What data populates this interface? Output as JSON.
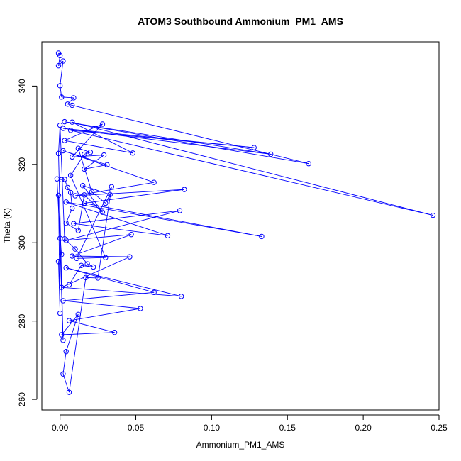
{
  "chart_data": {
    "type": "line",
    "title": "ATOM3 Southbound Ammonium_PM1_AMS",
    "xlabel": "Ammonium_PM1_AMS",
    "ylabel": "Theta (K)",
    "xlim": [
      -0.012,
      0.25
    ],
    "ylim": [
      257.3,
      351.3
    ],
    "x_ticks": [
      0.0,
      0.05,
      0.1,
      0.15,
      0.2,
      0.25
    ],
    "x_tick_labels": [
      "0.00",
      "0.05",
      "0.10",
      "0.15",
      "0.20",
      "0.25"
    ],
    "y_ticks": [
      260,
      280,
      300,
      320,
      340
    ],
    "y_tick_labels": [
      "260",
      "280",
      "300",
      "320",
      "340"
    ],
    "grid": false,
    "markers": "open-circle",
    "series_color": "#0000ff",
    "series": [
      {
        "points": [
          [
            -0.001,
            348.4
          ],
          [
            0.0,
            347.8
          ],
          [
            -0.001,
            345.2
          ],
          [
            0.002,
            346.4
          ],
          [
            0.0,
            340.1
          ],
          [
            0.001,
            337.2
          ],
          [
            0.009,
            337.0
          ],
          [
            0.005,
            335.4
          ],
          [
            0.008,
            335.1
          ],
          [
            0.164,
            320.2
          ],
          [
            0.003,
            330.9
          ],
          [
            0.139,
            322.6
          ],
          [
            0.002,
            329.2
          ],
          [
            0.128,
            324.3
          ],
          [
            0.007,
            328.7
          ],
          [
            0.246,
            307.0
          ],
          [
            0.008,
            330.8
          ],
          [
            0.048,
            322.9
          ],
          [
            0.003,
            326.1
          ],
          [
            0.028,
            330.3
          ],
          [
            0.008,
            321.9
          ],
          [
            0.029,
            322.4
          ],
          [
            0.016,
            318.8
          ],
          [
            0.031,
            319.9
          ],
          [
            0.002,
            323.5
          ],
          [
            0.062,
            315.4
          ],
          [
            0.01,
            312.0
          ],
          [
            0.082,
            313.6
          ],
          [
            0.016,
            310.1
          ],
          [
            0.133,
            301.6
          ],
          [
            0.004,
            310.4
          ],
          [
            0.071,
            301.8
          ],
          [
            0.009,
            304.9
          ],
          [
            0.079,
            308.2
          ],
          [
            0.004,
            300.6
          ],
          [
            0.047,
            302.1
          ],
          [
            0.008,
            296.6
          ],
          [
            0.046,
            296.4
          ],
          [
            0.001,
            288.6
          ],
          [
            0.08,
            286.3
          ],
          [
            0.004,
            293.6
          ],
          [
            0.062,
            287.3
          ],
          [
            0.002,
            285.2
          ],
          [
            0.053,
            283.2
          ],
          [
            0.006,
            280.1
          ],
          [
            0.036,
            277.1
          ],
          [
            0.001,
            276.5
          ],
          [
            0.012,
            281.7
          ],
          [
            0.004,
            272.2
          ],
          [
            0.002,
            266.5
          ],
          [
            0.006,
            261.8
          ],
          [
            0.017,
            291.1
          ],
          [
            0.025,
            291.0
          ],
          [
            0.034,
            314.3
          ],
          [
            0.011,
            296.0
          ],
          [
            0.03,
            296.2
          ],
          [
            0.007,
            317.2
          ],
          [
            0.016,
            322.6
          ],
          [
            0.02,
            323.1
          ],
          [
            0.012,
            324.1
          ],
          [
            0.021,
            313.0
          ],
          [
            0.03,
            310.1
          ],
          [
            0.033,
            312.3
          ],
          [
            0.015,
            314.6
          ],
          [
            0.028,
            307.8
          ],
          [
            0.016,
            312.2
          ],
          [
            0.012,
            303.1
          ],
          [
            0.004,
            305.0
          ],
          [
            0.008,
            308.8
          ],
          [
            0.007,
            312.8
          ],
          [
            0.005,
            314.1
          ],
          [
            0.003,
            316.2
          ],
          [
            0.001,
            316.1
          ],
          [
            -0.002,
            316.3
          ],
          [
            0.0,
            301.1
          ],
          [
            0.001,
            297.0
          ],
          [
            -0.001,
            295.2
          ],
          [
            0.0,
            282.0
          ],
          [
            -0.001,
            312.1
          ],
          [
            0.002,
            275.1
          ],
          [
            -0.001,
            322.8
          ],
          [
            0.0,
            330.0
          ],
          [
            0.003,
            301.0
          ],
          [
            0.01,
            298.4
          ],
          [
            0.018,
            294.6
          ],
          [
            0.022,
            293.8
          ],
          [
            0.014,
            294.2
          ],
          [
            0.006,
            289.3
          ]
        ]
      }
    ]
  }
}
